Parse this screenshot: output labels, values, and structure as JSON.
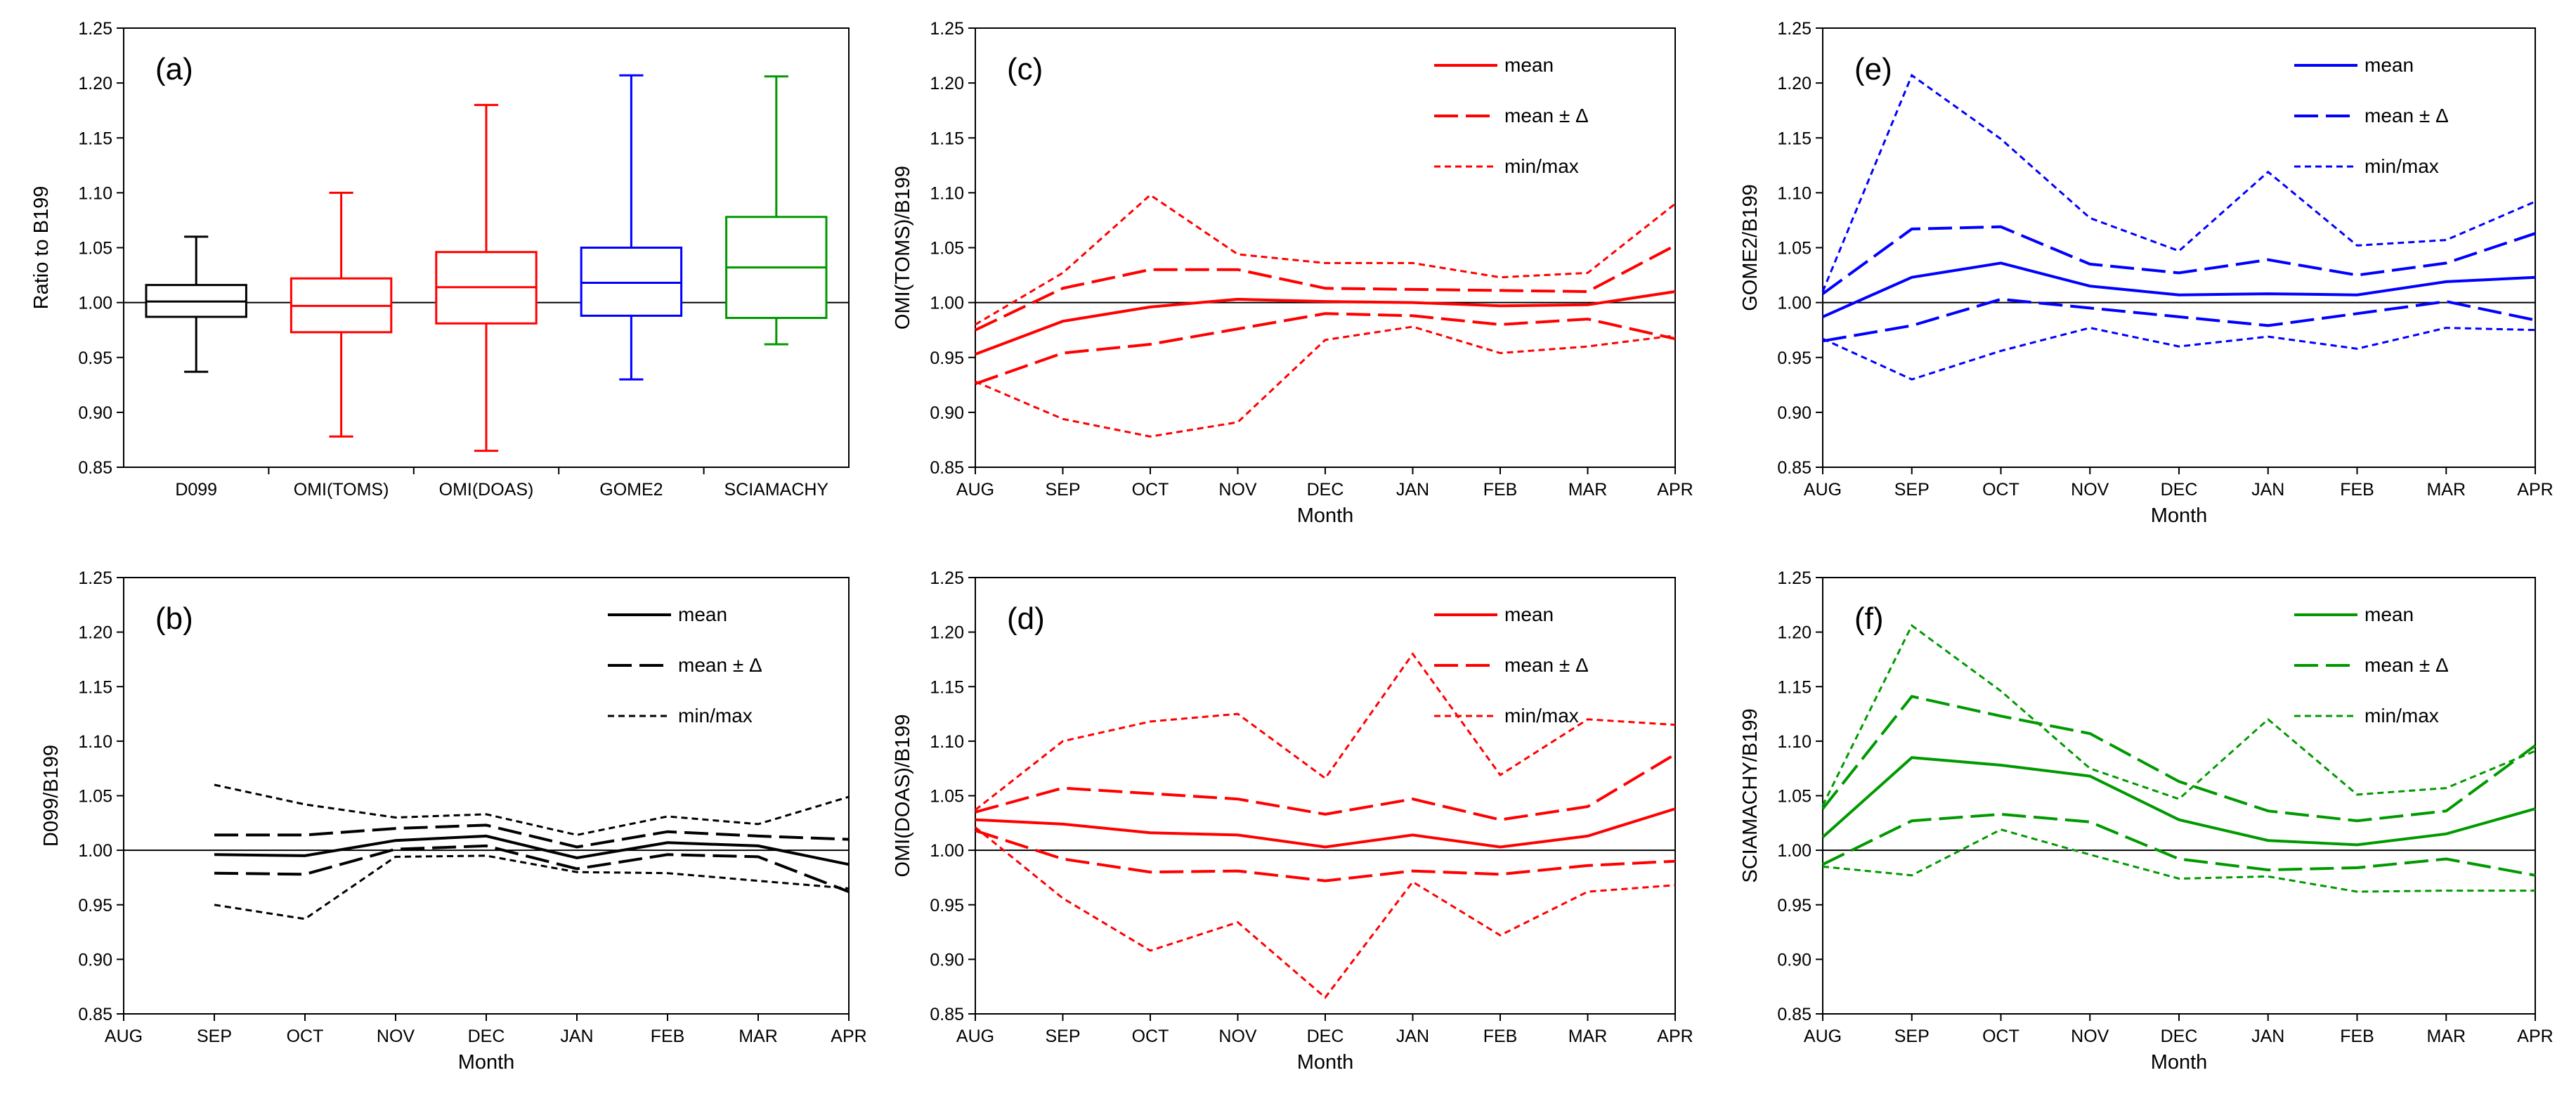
{
  "figure": {
    "colors": {
      "black": "#000000",
      "red": "#ff0000",
      "blue": "#0000ff",
      "green": "#009900"
    }
  },
  "chart_data": [
    {
      "id": "a",
      "panel_label": "(a)",
      "type": "box",
      "ylabel": "Ratio to B199",
      "xlabel": "",
      "ylim": [
        0.85,
        1.25
      ],
      "yticks": [
        "0.85",
        "0.90",
        "0.95",
        "1.00",
        "1.05",
        "1.10",
        "1.15",
        "1.20",
        "1.25"
      ],
      "reference_line": 1.0,
      "categories": [
        "D099",
        "OMI(TOMS)",
        "OMI(DOAS)",
        "GOME2",
        "SCIAMACHY"
      ],
      "boxes": [
        {
          "name": "D099",
          "color": "#000000",
          "min": 0.937,
          "q1": 0.987,
          "median": 1.001,
          "q3": 1.016,
          "max": 1.06
        },
        {
          "name": "OMI(TOMS)",
          "color": "#ff0000",
          "min": 0.878,
          "q1": 0.973,
          "median": 0.997,
          "q3": 1.022,
          "max": 1.1
        },
        {
          "name": "OMI(DOAS)",
          "color": "#ff0000",
          "min": 0.865,
          "q1": 0.981,
          "median": 1.014,
          "q3": 1.046,
          "max": 1.18
        },
        {
          "name": "GOME2",
          "color": "#0000ff",
          "min": 0.93,
          "q1": 0.988,
          "median": 1.018,
          "q3": 1.05,
          "max": 1.207
        },
        {
          "name": "SCIAMACHY",
          "color": "#009900",
          "min": 0.962,
          "q1": 0.986,
          "median": 1.032,
          "q3": 1.078,
          "max": 1.206
        }
      ]
    },
    {
      "id": "b",
      "panel_label": "(b)",
      "type": "line",
      "color": "#000000",
      "ylabel": "D099/B199",
      "xlabel": "Month",
      "ylim": [
        0.85,
        1.25
      ],
      "yticks": [
        "0.85",
        "0.90",
        "0.95",
        "1.00",
        "1.05",
        "1.10",
        "1.15",
        "1.20",
        "1.25"
      ],
      "categories": [
        "AUG",
        "SEP",
        "OCT",
        "NOV",
        "DEC",
        "JAN",
        "FEB",
        "MAR",
        "APR"
      ],
      "reference_line": 1.0,
      "legend": [
        "mean",
        "mean ± Δ",
        "min/max"
      ],
      "series": [
        {
          "name": "mean",
          "style": "solid",
          "values": [
            null,
            0.996,
            0.995,
            1.009,
            1.013,
            0.993,
            1.007,
            1.004,
            0.987
          ]
        },
        {
          "name": "mean+",
          "style": "dash",
          "values": [
            null,
            1.014,
            1.014,
            1.02,
            1.023,
            1.003,
            1.017,
            1.013,
            1.01
          ]
        },
        {
          "name": "mean-",
          "style": "dash",
          "values": [
            null,
            0.979,
            0.978,
            1.001,
            1.004,
            0.983,
            0.996,
            0.994,
            0.962
          ]
        },
        {
          "name": "max",
          "style": "dot",
          "values": [
            null,
            1.06,
            1.042,
            1.03,
            1.033,
            1.014,
            1.031,
            1.024,
            1.049
          ]
        },
        {
          "name": "min",
          "style": "dot",
          "values": [
            null,
            0.95,
            0.937,
            0.994,
            0.995,
            0.98,
            0.979,
            0.972,
            0.965
          ]
        }
      ]
    },
    {
      "id": "c",
      "panel_label": "(c)",
      "type": "line",
      "color": "#ff0000",
      "ylabel": "OMI(TOMS)/B199",
      "xlabel": "Month",
      "ylim": [
        0.85,
        1.25
      ],
      "yticks": [
        "0.85",
        "0.90",
        "0.95",
        "1.00",
        "1.05",
        "1.10",
        "1.15",
        "1.20",
        "1.25"
      ],
      "categories": [
        "AUG",
        "SEP",
        "OCT",
        "NOV",
        "DEC",
        "JAN",
        "FEB",
        "MAR",
        "APR"
      ],
      "reference_line": 1.0,
      "legend": [
        "mean",
        "mean ± Δ",
        "min/max"
      ],
      "series": [
        {
          "name": "mean",
          "style": "solid",
          "values": [
            0.953,
            0.983,
            0.996,
            1.003,
            1.001,
            1.0,
            0.997,
            0.998,
            1.01
          ]
        },
        {
          "name": "mean+",
          "style": "dash",
          "values": [
            0.975,
            1.013,
            1.03,
            1.03,
            1.013,
            1.012,
            1.011,
            1.01,
            1.052
          ]
        },
        {
          "name": "mean-",
          "style": "dash",
          "values": [
            0.926,
            0.954,
            0.962,
            0.976,
            0.99,
            0.988,
            0.98,
            0.985,
            0.967
          ]
        },
        {
          "name": "max",
          "style": "dot",
          "values": [
            0.98,
            1.027,
            1.098,
            1.044,
            1.036,
            1.036,
            1.023,
            1.027,
            1.09
          ]
        },
        {
          "name": "min",
          "style": "dot",
          "values": [
            0.928,
            0.894,
            0.878,
            0.891,
            0.966,
            0.978,
            0.954,
            0.96,
            0.97
          ]
        }
      ]
    },
    {
      "id": "d",
      "panel_label": "(d)",
      "type": "line",
      "color": "#ff0000",
      "ylabel": "OMI(DOAS)/B199",
      "xlabel": "Month",
      "ylim": [
        0.85,
        1.25
      ],
      "yticks": [
        "0.85",
        "0.90",
        "0.95",
        "1.00",
        "1.05",
        "1.10",
        "1.15",
        "1.20",
        "1.25"
      ],
      "categories": [
        "AUG",
        "SEP",
        "OCT",
        "NOV",
        "DEC",
        "JAN",
        "FEB",
        "MAR",
        "APR"
      ],
      "reference_line": 1.0,
      "legend": [
        "mean",
        "mean ± Δ",
        "min/max"
      ],
      "series": [
        {
          "name": "mean",
          "style": "solid",
          "values": [
            1.028,
            1.024,
            1.016,
            1.014,
            1.003,
            1.014,
            1.003,
            1.013,
            1.038
          ]
        },
        {
          "name": "mean+",
          "style": "dash",
          "values": [
            1.035,
            1.057,
            1.052,
            1.047,
            1.033,
            1.047,
            1.028,
            1.04,
            1.088
          ]
        },
        {
          "name": "mean-",
          "style": "dash",
          "values": [
            1.018,
            0.992,
            0.98,
            0.981,
            0.972,
            0.981,
            0.978,
            0.986,
            0.99
          ]
        },
        {
          "name": "max",
          "style": "dot",
          "values": [
            1.037,
            1.1,
            1.118,
            1.125,
            1.066,
            1.18,
            1.069,
            1.12,
            1.115
          ]
        },
        {
          "name": "min",
          "style": "dot",
          "values": [
            1.021,
            0.956,
            0.908,
            0.934,
            0.865,
            0.971,
            0.922,
            0.962,
            0.968
          ]
        }
      ]
    },
    {
      "id": "e",
      "panel_label": "(e)",
      "type": "line",
      "color": "#0000ff",
      "ylabel": "GOME2/B199",
      "xlabel": "Month",
      "ylim": [
        0.85,
        1.25
      ],
      "yticks": [
        "0.85",
        "0.90",
        "0.95",
        "1.00",
        "1.05",
        "1.10",
        "1.15",
        "1.20",
        "1.25"
      ],
      "categories": [
        "AUG",
        "SEP",
        "OCT",
        "NOV",
        "DEC",
        "JAN",
        "FEB",
        "MAR",
        "APR"
      ],
      "reference_line": 1.0,
      "legend": [
        "mean",
        "mean ± Δ",
        "min/max"
      ],
      "series": [
        {
          "name": "mean",
          "style": "solid",
          "values": [
            0.987,
            1.023,
            1.036,
            1.015,
            1.007,
            1.008,
            1.007,
            1.019,
            1.023
          ]
        },
        {
          "name": "mean+",
          "style": "dash",
          "values": [
            1.008,
            1.067,
            1.069,
            1.035,
            1.027,
            1.039,
            1.025,
            1.036,
            1.063
          ]
        },
        {
          "name": "mean-",
          "style": "dash",
          "values": [
            0.965,
            0.979,
            1.003,
            0.995,
            0.987,
            0.979,
            0.99,
            1.001,
            0.984
          ]
        },
        {
          "name": "max",
          "style": "dot",
          "values": [
            1.01,
            1.207,
            1.149,
            1.077,
            1.047,
            1.119,
            1.052,
            1.057,
            1.092
          ]
        },
        {
          "name": "min",
          "style": "dot",
          "values": [
            0.967,
            0.93,
            0.956,
            0.977,
            0.96,
            0.969,
            0.958,
            0.977,
            0.975
          ]
        }
      ]
    },
    {
      "id": "f",
      "panel_label": "(f)",
      "type": "line",
      "color": "#009900",
      "ylabel": "SCIAMACHY/B199",
      "xlabel": "Month",
      "ylim": [
        0.85,
        1.25
      ],
      "yticks": [
        "0.85",
        "0.90",
        "0.95",
        "1.00",
        "1.05",
        "1.10",
        "1.15",
        "1.20",
        "1.25"
      ],
      "categories": [
        "AUG",
        "SEP",
        "OCT",
        "NOV",
        "DEC",
        "JAN",
        "FEB",
        "MAR",
        "APR"
      ],
      "reference_line": 1.0,
      "legend": [
        "mean",
        "mean ± Δ",
        "min/max"
      ],
      "series": [
        {
          "name": "mean",
          "style": "solid",
          "values": [
            1.012,
            1.085,
            1.078,
            1.068,
            1.028,
            1.009,
            1.005,
            1.015,
            1.038
          ]
        },
        {
          "name": "mean+",
          "style": "dash",
          "values": [
            1.038,
            1.141,
            1.123,
            1.107,
            1.063,
            1.036,
            1.027,
            1.036,
            1.096
          ]
        },
        {
          "name": "mean-",
          "style": "dash",
          "values": [
            0.987,
            1.027,
            1.033,
            1.026,
            0.992,
            0.982,
            0.984,
            0.992,
            0.977
          ]
        },
        {
          "name": "max",
          "style": "dot",
          "values": [
            1.041,
            1.206,
            1.146,
            1.075,
            1.047,
            1.12,
            1.051,
            1.057,
            1.091
          ]
        },
        {
          "name": "min",
          "style": "dot",
          "values": [
            0.985,
            0.977,
            1.019,
            0.996,
            0.974,
            0.976,
            0.962,
            0.963,
            0.963
          ]
        }
      ]
    }
  ]
}
